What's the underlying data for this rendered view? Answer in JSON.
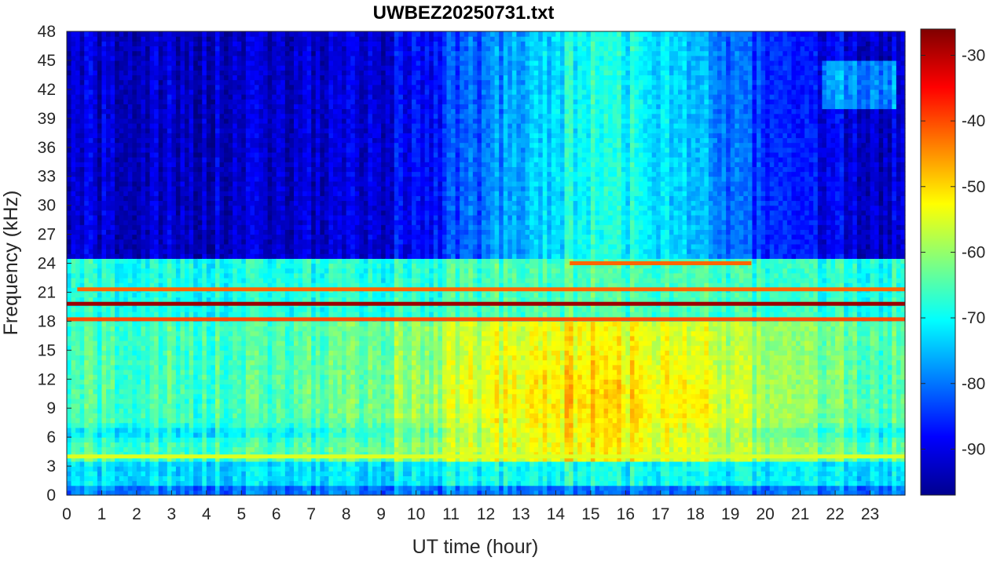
{
  "chart_data": {
    "type": "heatmap",
    "title": "UWBEZ20250731.txt",
    "xlabel": "UT time (hour)",
    "ylabel": "Frequency (kHz)",
    "xlim": [
      0,
      24
    ],
    "ylim": [
      0,
      48
    ],
    "x_ticks": [
      "0",
      "1",
      "2",
      "3",
      "4",
      "5",
      "6",
      "7",
      "8",
      "9",
      "10",
      "11",
      "12",
      "13",
      "14",
      "15",
      "16",
      "17",
      "18",
      "19",
      "20",
      "21",
      "22",
      "23"
    ],
    "y_ticks": [
      "0",
      "3",
      "6",
      "9",
      "12",
      "15",
      "18",
      "21",
      "24",
      "27",
      "30",
      "33",
      "36",
      "39",
      "42",
      "45",
      "48"
    ],
    "colorbar": {
      "colormap": "jet",
      "range": [
        -97,
        -26
      ],
      "ticks": [
        "-30",
        "-40",
        "-50",
        "-60",
        "-70",
        "-80",
        "-90"
      ]
    },
    "features": [
      {
        "description_level_dB": -28,
        "freq_kHz": 19.8,
        "x_range": [
          0,
          24
        ]
      },
      {
        "description_level_dB": -40,
        "freq_kHz": 18.2,
        "x_range": [
          0,
          24
        ]
      },
      {
        "description_level_dB": -42,
        "freq_kHz": 21.3,
        "x_range": [
          0.3,
          24
        ]
      },
      {
        "description_level_dB": -42,
        "freq_kHz": 24.0,
        "x_range": [
          14.4,
          19.6
        ]
      },
      {
        "description_level_dB": -55,
        "freq_kHz": 4.0,
        "x_range": [
          0,
          24
        ]
      }
    ]
  }
}
